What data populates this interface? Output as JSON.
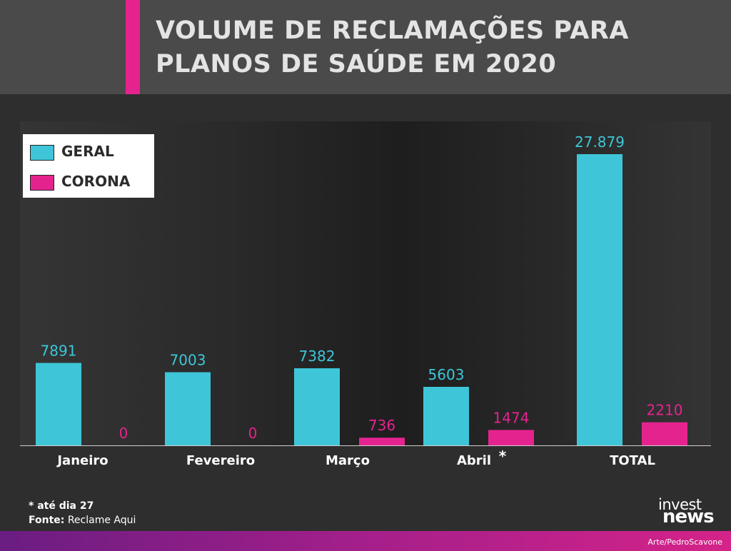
{
  "header": {
    "title_line1": "VOLUME DE RECLAMAÇÕES PARA",
    "title_line2": "PLANOS DE SAÚDE EM 2020"
  },
  "legend": {
    "geral": "GERAL",
    "corona": "CORONA"
  },
  "colors": {
    "geral": "#3ec6d8",
    "corona": "#e5238f",
    "accent": "#e5238f"
  },
  "notes": {
    "asterisk_note": "* até dia 27",
    "source_label": "Fonte:",
    "source_value": "Reclame Aqui"
  },
  "logo": {
    "line1": "invest",
    "line2": "news"
  },
  "credit": "Arte/PedroScavone",
  "chart_data": {
    "type": "bar",
    "title": "VOLUME DE RECLAMAÇÕES PARA PLANOS DE SAÚDE EM 2020",
    "legend_position": "top-left",
    "grid": false,
    "ylim": [
      0,
      27879
    ],
    "categories": [
      "Janeiro",
      "Fevereiro",
      "Março",
      "Abril",
      "TOTAL"
    ],
    "category_marks": [
      "",
      "",
      "",
      "*",
      ""
    ],
    "series": [
      {
        "name": "GERAL",
        "values": [
          7891,
          7003,
          7382,
          5603,
          27879
        ],
        "labels": [
          "7891",
          "7003",
          "7382",
          "5603",
          "27.879"
        ]
      },
      {
        "name": "CORONA",
        "values": [
          0,
          0,
          736,
          1474,
          2210
        ],
        "labels": [
          "0",
          "0",
          "736",
          "1474",
          "2210"
        ]
      }
    ]
  }
}
